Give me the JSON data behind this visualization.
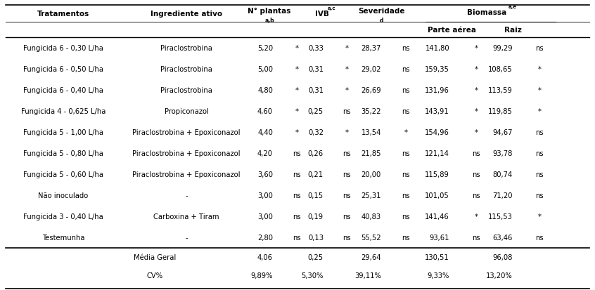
{
  "rows": [
    [
      "Fungicida 6 - 0,30 L/ha",
      "Piraclostrobina",
      "5,20",
      "*",
      "0,33",
      "*",
      "28,37",
      "ns",
      "141,80",
      "*",
      "99,29",
      "ns"
    ],
    [
      "Fungicida 6 - 0,50 L/ha",
      "Piraclostrobina",
      "5,00",
      "*",
      "0,31",
      "*",
      "29,02",
      "ns",
      "159,35",
      "*",
      "108,65",
      "*"
    ],
    [
      "Fungicida 6 - 0,40 L/ha",
      "Piraclostrobina",
      "4,80",
      "*",
      "0,31",
      "*",
      "26,69",
      "ns",
      "131,96",
      "*",
      "113,59",
      "*"
    ],
    [
      "Fungicida 4 - 0,625 L/ha",
      "Propiconazol",
      "4,60",
      "*",
      "0,25",
      "ns",
      "35,22",
      "ns",
      "143,91",
      "*",
      "119,85",
      "*"
    ],
    [
      "Fungicida 5 - 1,00 L/ha",
      "Piraclostrobina + Epoxiconazol",
      "4,40",
      "*",
      "0,32",
      "*",
      "13,54",
      "*",
      "154,96",
      "*",
      "94,67",
      "ns"
    ],
    [
      "Fungicida 5 - 0,80 L/ha",
      "Piraclostrobina + Epoxiconazol",
      "4,20",
      "ns",
      "0,26",
      "ns",
      "21,85",
      "ns",
      "121,14",
      "ns",
      "93,78",
      "ns"
    ],
    [
      "Fungicida 5 - 0,60 L/ha",
      "Piraclostrobina + Epoxiconazol",
      "3,60",
      "ns",
      "0,21",
      "ns",
      "20,00",
      "ns",
      "115,89",
      "ns",
      "80,74",
      "ns"
    ],
    [
      "Não inoculado",
      "-",
      "3,00",
      "ns",
      "0,15",
      "ns",
      "25,31",
      "ns",
      "101,05",
      "ns",
      "71,20",
      "ns"
    ],
    [
      "Fungicida 3 - 0,40 L/ha",
      "Carboxina + Tiram",
      "3,00",
      "ns",
      "0,19",
      "ns",
      "40,83",
      "ns",
      "141,46",
      "*",
      "115,53",
      "*"
    ],
    [
      "Testemunha",
      "-",
      "2,80",
      "ns",
      "0,13",
      "ns",
      "55,52",
      "ns",
      "93,61",
      "ns",
      "63,46",
      "ns"
    ]
  ],
  "footer_rows": [
    [
      "Média Geral",
      "4,06",
      "0,25",
      "29,64",
      "130,51",
      "96,08"
    ],
    [
      "CV%",
      "9,89%",
      "5,30%",
      "39,11%",
      "9,33%",
      "13,20%"
    ]
  ],
  "bg_color": "#ffffff",
  "text_color": "#000000",
  "line_color": "#000000",
  "font_size": 7.2,
  "header_font_size": 7.5
}
